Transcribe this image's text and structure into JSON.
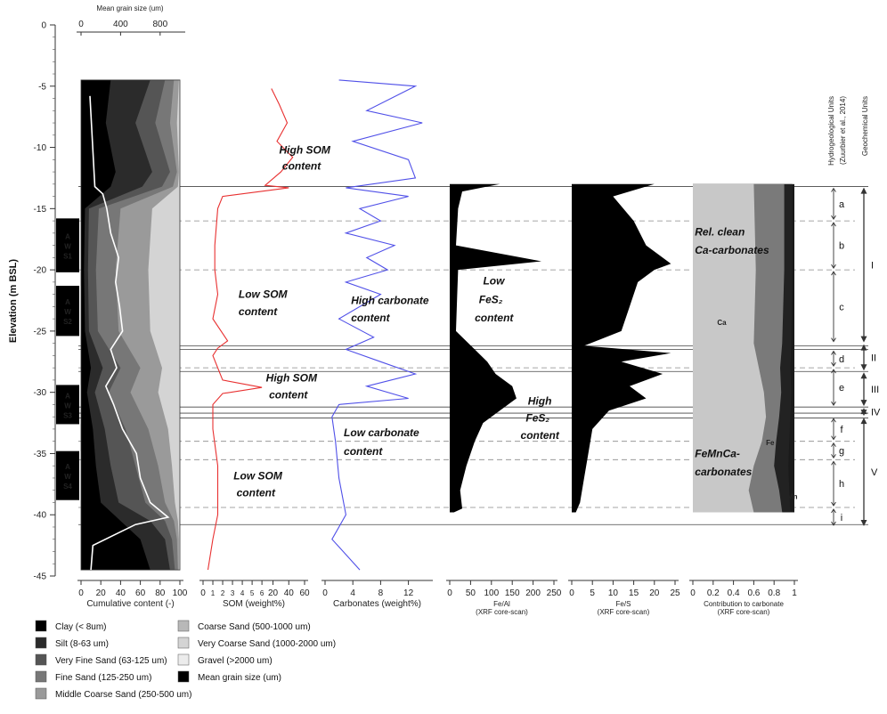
{
  "chart_data": {
    "type": "line",
    "y_axis": {
      "label": "Elevation (m BSL)",
      "ylim": [
        0,
        -45
      ],
      "ticks": [
        0,
        -5,
        -10,
        -15,
        -20,
        -25,
        -30,
        -35,
        -40,
        -45
      ]
    },
    "top_axis": {
      "label": "Mean grain size (um)",
      "ticks": [
        "0",
        "400",
        "800"
      ]
    },
    "panels": [
      {
        "id": "cumulative",
        "xlabel": "Cumulative content (-)",
        "ticks": [
          "0",
          "20",
          "40",
          "60",
          "80",
          "100"
        ],
        "xlim": [
          0,
          100
        ],
        "series": [
          {
            "name": "Clay (< 8um)",
            "color": "#000000"
          },
          {
            "name": "Silt (8-63 um)",
            "color": "#2b2b2b"
          },
          {
            "name": "Very Fine Sand  (63-125 um)",
            "color": "#555555"
          },
          {
            "name": "Fine Sand (125-250 um)",
            "color": "#777777"
          },
          {
            "name": "Middle Coarse Sand (250-500 um)",
            "color": "#9a9a9a"
          },
          {
            "name": "Coarse Sand (500-1000 um)",
            "color": "#b8b8b8"
          },
          {
            "name": "Very Coarse Sand (1000-2000 um)",
            "color": "#d4d4d4"
          },
          {
            "name": "Gravel (>2000 um)",
            "color": "#ececec"
          }
        ],
        "boundaries": [
          {
            "y": [
              -4.5,
              -8,
              -12,
              -13.2,
              -15,
              -20,
              -25,
              -28,
              -30,
              -33,
              -36,
              -39,
              -40.5,
              -42,
              -44.5
            ],
            "v": [
              30,
              25,
              35,
              30,
              4,
              3,
              4,
              10,
              6,
              12,
              15,
              20,
              40,
              60,
              70
            ]
          },
          {
            "y": [
              -4.5,
              -8,
              -12,
              -13.2,
              -15,
              -20,
              -25,
              -28,
              -30,
              -33,
              -36,
              -39,
              -40.5,
              -42,
              -44.5
            ],
            "v": [
              70,
              55,
              72,
              62,
              8,
              7,
              8,
              22,
              14,
              24,
              30,
              38,
              70,
              85,
              90
            ]
          },
          {
            "y": [
              -4.5,
              -8,
              -12,
              -13.2,
              -15,
              -20,
              -25,
              -28,
              -30,
              -33,
              -36,
              -39,
              -40.5,
              -42,
              -44.5
            ],
            "v": [
              85,
              75,
              90,
              82,
              18,
              15,
              17,
              40,
              28,
              45,
              55,
              65,
              85,
              92,
              95
            ]
          },
          {
            "y": [
              -4.5,
              -8,
              -12,
              -13.2,
              -15,
              -20,
              -25,
              -28,
              -30,
              -33,
              -36,
              -39,
              -40.5,
              -42,
              -44.5
            ],
            "v": [
              94,
              90,
              97,
              93,
              40,
              35,
              38,
              60,
              50,
              68,
              78,
              85,
              94,
              97,
              98
            ]
          },
          {
            "y": [
              -4.5,
              -8,
              -12,
              -13.2,
              -15,
              -20,
              -25,
              -28,
              -30,
              -33,
              -36,
              -39,
              -40.5,
              -42,
              -44.5
            ],
            "v": [
              99,
              97,
              99,
              98,
              72,
              68,
              70,
              82,
              78,
              88,
              92,
              95,
              98,
              99,
              99
            ]
          }
        ]
      },
      {
        "id": "mean_grain",
        "xlabel": "Mean grain size (um)",
        "xlim": [
          0,
          1000
        ],
        "series": [
          {
            "name": "Mean grain size (um)",
            "color": "#ffffff",
            "y": [
              -5.8,
              -13.2,
              -13.8,
              -15,
              -17,
              -19,
              -21,
              -23,
              -25,
              -26.5,
              -28,
              -29.5,
              -31,
              -33,
              -35,
              -37,
              -39,
              -40.2,
              -40.8,
              -42.5,
              -44.5
            ],
            "x": [
              90,
              140,
              220,
              260,
              300,
              380,
              350,
              390,
              420,
              300,
              360,
              250,
              330,
              420,
              560,
              600,
              700,
              880,
              550,
              120,
              100
            ]
          }
        ]
      },
      {
        "id": "som",
        "xlabel": "SOM (weight%)",
        "ticks": [
          "0",
          "1",
          "2",
          "3",
          "4",
          "5",
          "6",
          "20",
          "40",
          "60"
        ],
        "xlim": [
          0,
          60
        ],
        "series": [
          {
            "name": "SOM",
            "color": "#e83030",
            "y": [
              -5.2,
              -6.5,
              -8,
              -9.5,
              -10.8,
              -12,
              -13.1,
              -13.3,
              -14,
              -15,
              -18,
              -20,
              -22,
              -24,
              -25.8,
              -26.4,
              -27,
              -28,
              -29,
              -29.6,
              -30.1,
              -31,
              -33,
              -36,
              -40,
              -42,
              -44.5
            ],
            "x": [
              18,
              28,
              38,
              25,
              45,
              30,
              10,
              40,
              2,
              1.5,
              1.2,
              1.2,
              1.5,
              1,
              2.5,
              1.5,
              1,
              1.5,
              2,
              6,
              2,
              1,
              1,
              1.5,
              1.5,
              1,
              0.5
            ]
          }
        ]
      },
      {
        "id": "carbonates",
        "xlabel": "Carbonates (weight%)",
        "ticks": [
          "0",
          "4",
          "8",
          "12"
        ],
        "xlim": [
          0,
          15
        ],
        "series": [
          {
            "name": "Carbonates",
            "color": "#5050e8",
            "y": [
              -4.5,
              -5,
              -7,
              -8,
              -9.5,
              -11,
              -12.5,
              -13.3,
              -14,
              -15,
              -16,
              -17,
              -18,
              -19,
              -20,
              -21,
              -22,
              -24,
              -25.5,
              -26.5,
              -27.5,
              -28.5,
              -29.5,
              -30.5,
              -31,
              -32,
              -34,
              -37,
              -40,
              -42,
              -44.5
            ],
            "x": [
              2,
              13,
              6,
              14,
              4,
              12,
              13,
              3,
              12,
              5,
              8,
              3,
              10,
              6,
              9,
              3,
              8,
              2,
              7,
              3,
              8,
              13,
              6,
              12,
              2,
              1,
              1.5,
              2,
              3,
              1,
              5
            ]
          }
        ]
      },
      {
        "id": "fe_al",
        "xlabel": "Fe/Al",
        "sublabel": "(XRF core-scan)",
        "ticks": [
          "0",
          "50",
          "100",
          "150",
          "200",
          "250"
        ],
        "xlim": [
          0,
          250
        ],
        "series": [
          {
            "name": "Fe/Al",
            "color": "#000000",
            "y": [
              -13,
              -13.6,
              -15,
              -18,
              -19.3,
              -20,
              -22,
              -25,
              -26.5,
              -27.5,
              -28.5,
              -29.5,
              -30.5,
              -31.5,
              -32.5,
              -34,
              -36,
              -38,
              -39.5,
              -39.8
            ],
            "x": [
              120,
              30,
              20,
              15,
              220,
              20,
              18,
              15,
              60,
              90,
              110,
              150,
              160,
              120,
              80,
              60,
              40,
              25,
              30,
              10
            ]
          }
        ]
      },
      {
        "id": "fe_s",
        "xlabel": "Fe/S",
        "sublabel": "(XRF core-scan)",
        "ticks": [
          "0",
          "5",
          "10",
          "15",
          "20",
          "25"
        ],
        "xlim": [
          0,
          25
        ],
        "series": [
          {
            "name": "Fe/S",
            "color": "#000000",
            "y": [
              -13,
              -14,
              -16,
              -18,
              -19.5,
              -20,
              -21,
              -23,
              -25,
              -26.2,
              -26.8,
              -27.5,
              -28.5,
              -29.5,
              -30.5,
              -31.5,
              -33,
              -35,
              -37,
              -39,
              -39.8
            ],
            "x": [
              20,
              10,
              15,
              18,
              24,
              20,
              16,
              14,
              12,
              3,
              24,
              12,
              22,
              14,
              18,
              9,
              5,
              4,
              3,
              2,
              1
            ]
          }
        ]
      },
      {
        "id": "carbonate_contrib",
        "xlabel": "Contribution to carbonate",
        "sublabel": "(XRF core-scan)",
        "ticks": [
          "0",
          "0.2",
          "0.4",
          "0.6",
          "0.8",
          "1"
        ],
        "xlim": [
          0,
          1
        ],
        "series": [
          {
            "name": "Ca",
            "color": "#c8c8c8",
            "y": [
              -13,
              -20,
              -26,
              -28,
              -30,
              -32,
              -34,
              -36,
              -38,
              -39.8
            ],
            "x": [
              0.6,
              0.62,
              0.6,
              0.65,
              0.7,
              0.72,
              0.68,
              0.6,
              0.55,
              0.6
            ]
          },
          {
            "name": "Fe",
            "color": "#7a7a7a",
            "y": [
              -13,
              -20,
              -26,
              -28,
              -30,
              -32,
              -34,
              -36,
              -38,
              -39.8
            ],
            "x": [
              0.9,
              0.9,
              0.88,
              0.86,
              0.87,
              0.85,
              0.82,
              0.8,
              0.85,
              0.88
            ]
          },
          {
            "name": "Mn",
            "color": "#222222",
            "y": [
              -13,
              -20,
              -26,
              -28,
              -30,
              -32,
              -34,
              -36,
              -38,
              -39.8
            ],
            "x": [
              0.98,
              0.98,
              0.97,
              0.96,
              0.97,
              0.96,
              0.95,
              0.94,
              0.95,
              0.96
            ]
          }
        ]
      }
    ],
    "cores": [
      {
        "label": "A\nW\nS1",
        "top": -15.8,
        "bottom": -20.2
      },
      {
        "label": "A\nW\nS2",
        "top": -21.3,
        "bottom": -25.4
      },
      {
        "label": "A\nW\nS3",
        "top": -29.4,
        "bottom": -32.6
      },
      {
        "label": "A\nW\nS4",
        "top": -34.8,
        "bottom": -38.8
      }
    ],
    "hydro_units": {
      "title": "Hydrogeological Units",
      "citation": "(Zuurbier et al., 2014)",
      "units": [
        {
          "name": "a",
          "top": -13.2,
          "bottom": -16
        },
        {
          "name": "b",
          "top": -16,
          "bottom": -20
        },
        {
          "name": "c",
          "top": -20,
          "bottom": -26
        },
        {
          "name": "d",
          "top": -26.5,
          "bottom": -28
        },
        {
          "name": "e",
          "top": -28,
          "bottom": -31.2
        },
        {
          "name": "f",
          "top": -32,
          "bottom": -34
        },
        {
          "name": "g",
          "top": -34,
          "bottom": -35.5
        },
        {
          "name": "h",
          "top": -35.5,
          "bottom": -39.4
        },
        {
          "name": "i",
          "top": -39.4,
          "bottom": -41
        }
      ]
    },
    "geochem_units": {
      "title": "Geochemical Units",
      "units": [
        {
          "name": "I",
          "top": -13.2,
          "bottom": -26
        },
        {
          "name": "II",
          "top": -26,
          "bottom": -28.3
        },
        {
          "name": "III",
          "top": -28.3,
          "bottom": -31.2
        },
        {
          "name": "IV",
          "top": -31.2,
          "bottom": -32
        },
        {
          "name": "V",
          "top": -32,
          "bottom": -41
        }
      ]
    },
    "horizontal_lines": {
      "solid": [
        -13.2,
        -26.2,
        -26.5,
        -28.3,
        -31.2,
        -31.7,
        -32.1,
        -40.8
      ],
      "dashed": [
        -16,
        -20,
        -28,
        -34,
        -35.5,
        -39.4
      ]
    },
    "annotations": [
      {
        "text": "High SOM",
        "depth": -10.5,
        "panel": "som",
        "at": 0.75
      },
      {
        "text": "content",
        "depth": -11.8,
        "panel": "som",
        "at": 0.78
      },
      {
        "text": "Low SOM",
        "depth": -22.3,
        "panel": "som",
        "at": 0.35
      },
      {
        "text": "content",
        "depth": -23.7,
        "panel": "som",
        "at": 0.35
      },
      {
        "text": "High SOM",
        "depth": -29.1,
        "panel": "som",
        "at": 0.62
      },
      {
        "text": "content",
        "depth": -30.5,
        "panel": "som",
        "at": 0.65
      },
      {
        "text": "Low SOM",
        "depth": -37.1,
        "panel": "som",
        "at": 0.3
      },
      {
        "text": "content",
        "depth": -38.5,
        "panel": "som",
        "at": 0.33
      },
      {
        "text": "High carbonate",
        "depth": -22.8,
        "panel": "carbonates",
        "at": 0.25
      },
      {
        "text": "content",
        "depth": -24.2,
        "panel": "carbonates",
        "at": 0.25
      },
      {
        "text": "Low carbonate",
        "depth": -33.6,
        "panel": "carbonates",
        "at": 0.18
      },
      {
        "text": "content",
        "depth": -35.1,
        "panel": "carbonates",
        "at": 0.18
      },
      {
        "text": "Low",
        "depth": -21.2,
        "panel": "fe_al",
        "at": 0.32
      },
      {
        "text": "FeS₂",
        "depth": -22.7,
        "panel": "fe_al",
        "at": 0.28
      },
      {
        "text": "content",
        "depth": -24.2,
        "panel": "fe_al",
        "at": 0.24
      },
      {
        "text": "High",
        "depth": -31,
        "panel": "fe_al",
        "at": 0.75
      },
      {
        "text": "FeS₂",
        "depth": -32.4,
        "panel": "fe_al",
        "at": 0.73
      },
      {
        "text": "content",
        "depth": -33.8,
        "panel": "fe_al",
        "at": 0.68
      },
      {
        "text": "Rel. clean",
        "depth": -17.2,
        "panel": "carbonate_contrib",
        "at": 0.02
      },
      {
        "text": "Ca-carbonates",
        "depth": -18.7,
        "panel": "carbonate_contrib",
        "at": 0.02
      },
      {
        "text": "FeMnCa-",
        "depth": -35.3,
        "panel": "carbonate_contrib",
        "at": 0.02
      },
      {
        "text": "carbonates",
        "depth": -36.8,
        "panel": "carbonate_contrib",
        "at": 0.02
      }
    ],
    "inline_labels": [
      {
        "text": "Ca",
        "depth": -24.5,
        "panel": "carbonate_contrib",
        "at": 0.24
      },
      {
        "text": "Fe",
        "depth": -34.3,
        "panel": "carbonate_contrib",
        "at": 0.72
      },
      {
        "text": "Mn",
        "depth": -38.7,
        "panel": "carbonate_contrib",
        "at": 0.93
      }
    ],
    "legend": {
      "placement": "bottom-left",
      "items": [
        {
          "label": "Clay (< 8um)",
          "color": "#000000"
        },
        {
          "label": "Silt (8-63 um)",
          "color": "#2b2b2b"
        },
        {
          "label": "Very Fine Sand  (63-125 um)",
          "color": "#555555"
        },
        {
          "label": "Fine Sand (125-250 um)",
          "color": "#777777"
        },
        {
          "label": "Middle Coarse Sand (250-500 um)",
          "color": "#9a9a9a"
        },
        {
          "label": "Coarse Sand (500-1000 um)",
          "color": "#b8b8b8"
        },
        {
          "label": "Very Coarse Sand (1000-2000 um)",
          "color": "#d4d4d4"
        },
        {
          "label": "Gravel (>2000 um)",
          "color": "#ececec"
        },
        {
          "label": "Mean grain size (um)",
          "color": "#000000"
        }
      ]
    }
  }
}
